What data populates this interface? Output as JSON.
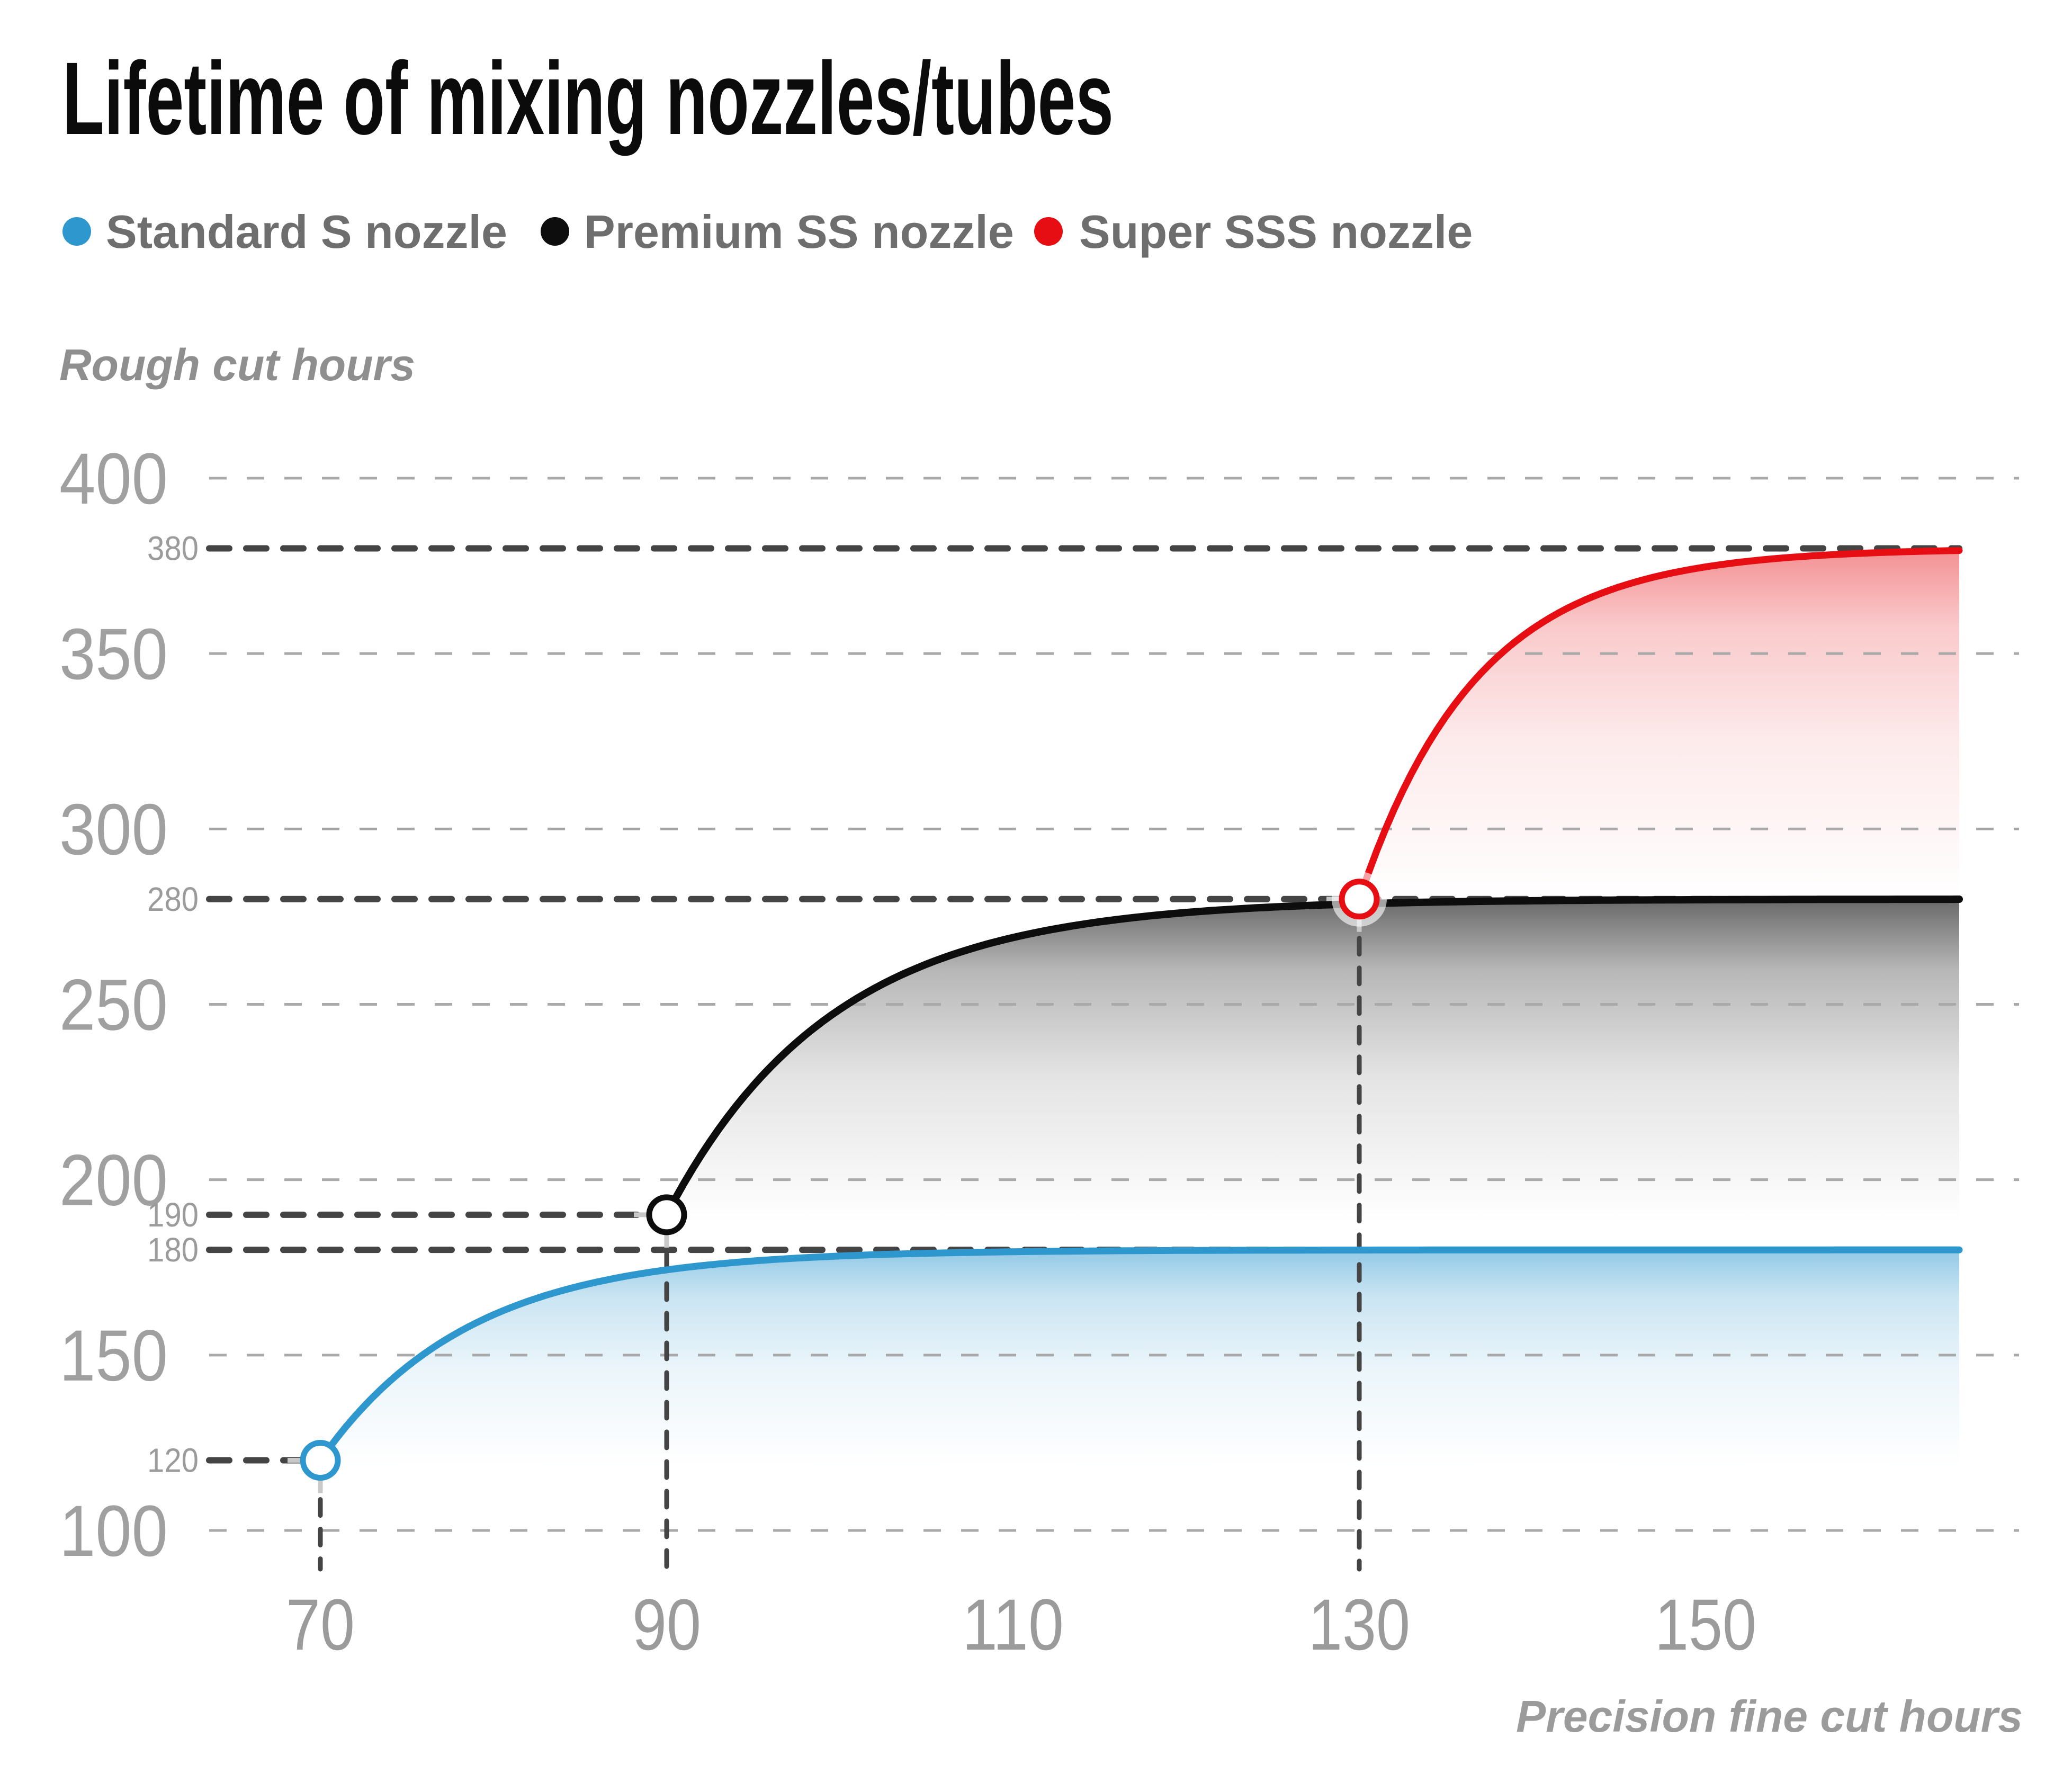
{
  "title": {
    "text": "Lifetime of mixing nozzles/tubes"
  },
  "legend": {
    "items": [
      {
        "label": "Standard S nozzle",
        "color": "#2e97ce"
      },
      {
        "label": "Premium SS nozzle",
        "color": "#0d0d0d"
      },
      {
        "label": "Super SSS nozzle",
        "color": "#e60d13"
      }
    ]
  },
  "palette": {
    "background": "#ffffff",
    "title_text": "#0b0b0b",
    "legend_text": "#6e6e6e",
    "tick_text": "#9b9b9b",
    "small_label_text": "#9b9b9b",
    "y_axis_title_text": "#8f8f8f",
    "grid_line": "#a9a9a9",
    "annotation_line": "#444444",
    "marker_stub": "#c8c8c8",
    "marker_fill": "#ffffff"
  },
  "chart_data": {
    "type": "line",
    "title": "Lifetime of mixing nozzles/tubes",
    "xlabel": "Precision fine cut hours",
    "ylabel": "Rough cut hours",
    "x_ticks": [
      70,
      90,
      110,
      130,
      150
    ],
    "y_ticks": [
      100,
      150,
      200,
      250,
      300,
      350,
      400
    ],
    "xlim": [
      63.5,
      165
    ],
    "ylim": [
      100,
      400
    ],
    "grid": "dashed-horizontal",
    "legend_position": "top-left",
    "annotations": [
      {
        "label": "380",
        "value": 380,
        "extent": "full"
      },
      {
        "label": "280",
        "value": 280,
        "extent": "full"
      },
      {
        "label": "190",
        "value": 190,
        "extent": "to-series-start",
        "until_x": 90
      },
      {
        "label": "180",
        "value": 180,
        "extent": "full"
      },
      {
        "label": "120",
        "value": 120,
        "extent": "to-series-start",
        "until_x": 70
      }
    ],
    "series": [
      {
        "name": "Standard S nozzle",
        "color": "#2e97ce",
        "start": [
          70,
          120
        ],
        "plateau": 180,
        "tau": 8.5,
        "x_end": 164.7,
        "fill_bottom": 118,
        "marker": "open-circle-at-start",
        "points": [
          [
            70,
            120
          ],
          [
            75,
            147
          ],
          [
            80,
            161
          ],
          [
            85,
            170
          ],
          [
            90,
            174
          ],
          [
            95,
            177
          ],
          [
            100,
            178
          ],
          [
            110,
            179.5
          ],
          [
            120,
            180
          ],
          [
            130,
            180
          ],
          [
            140,
            180
          ],
          [
            150,
            180
          ],
          [
            160,
            180
          ],
          [
            165,
            180
          ]
        ]
      },
      {
        "name": "Premium SS nozzle",
        "color": "#0d0d0d",
        "start": [
          90,
          190
        ],
        "plateau": 280,
        "tau": 9.5,
        "x_end": 164.7,
        "fill_bottom": 188,
        "marker": "open-circle-at-start",
        "points": [
          [
            90,
            190
          ],
          [
            95,
            227
          ],
          [
            100,
            249
          ],
          [
            105,
            261
          ],
          [
            110,
            269
          ],
          [
            115,
            273.5
          ],
          [
            120,
            276
          ],
          [
            130,
            278.5
          ],
          [
            140,
            279.5
          ],
          [
            150,
            280
          ],
          [
            165,
            280
          ]
        ]
      },
      {
        "name": "Super SSS nozzle",
        "color": "#e60d13",
        "start": [
          130,
          280
        ],
        "plateau": 380,
        "tau": 6.8,
        "x_end": 164.7,
        "fill_bottom": 279,
        "marker": "open-circle-at-start-with-halo",
        "points": [
          [
            130,
            280
          ],
          [
            132,
            305
          ],
          [
            135,
            332
          ],
          [
            140,
            357
          ],
          [
            145,
            369
          ],
          [
            150,
            375
          ],
          [
            155,
            377.5
          ],
          [
            160,
            379
          ],
          [
            165,
            379.5
          ]
        ]
      }
    ]
  }
}
